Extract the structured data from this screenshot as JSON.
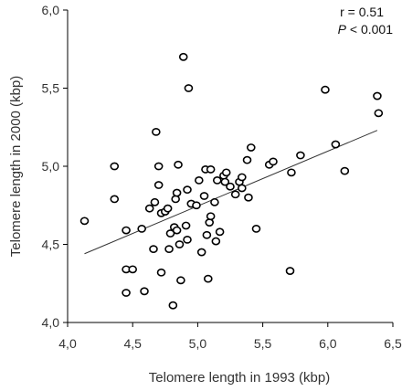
{
  "chart_data": {
    "type": "scatter",
    "xlabel": "Telomere length in 1993 (kbp)",
    "ylabel": "Telomere length in 2000 (kbp)",
    "xlim": [
      4.0,
      6.5
    ],
    "ylim": [
      4.0,
      6.0
    ],
    "xticks": [
      "4,0",
      "4,5",
      "5,0",
      "5,5",
      "6,0",
      "6,5"
    ],
    "yticks": [
      "4,0",
      "4,5",
      "5,0",
      "5,5",
      "6,0"
    ],
    "xtick_values": [
      4.0,
      4.5,
      5.0,
      5.5,
      6.0,
      6.5
    ],
    "ytick_values": [
      4.0,
      4.5,
      5.0,
      5.5,
      6.0
    ],
    "annotations": {
      "r_text": "r = 0.51",
      "p_symbol": "P",
      "p_text": " < 0.001"
    },
    "trendline": {
      "x": [
        4.13,
        6.38
      ],
      "y": [
        4.44,
        5.23
      ]
    },
    "points": [
      [
        4.13,
        4.65
      ],
      [
        4.36,
        5.0
      ],
      [
        4.36,
        4.79
      ],
      [
        4.45,
        4.59
      ],
      [
        4.45,
        4.34
      ],
      [
        4.45,
        4.19
      ],
      [
        4.5,
        4.34
      ],
      [
        4.57,
        4.6
      ],
      [
        4.59,
        4.2
      ],
      [
        4.63,
        4.73
      ],
      [
        4.66,
        4.47
      ],
      [
        4.67,
        4.77
      ],
      [
        4.68,
        5.22
      ],
      [
        4.7,
        5.0
      ],
      [
        4.7,
        4.88
      ],
      [
        4.72,
        4.7
      ],
      [
        4.72,
        4.32
      ],
      [
        4.75,
        4.71
      ],
      [
        4.77,
        4.73
      ],
      [
        4.78,
        4.47
      ],
      [
        4.79,
        4.57
      ],
      [
        4.81,
        4.11
      ],
      [
        4.82,
        4.61
      ],
      [
        4.83,
        4.79
      ],
      [
        4.84,
        4.83
      ],
      [
        4.84,
        4.59
      ],
      [
        4.85,
        5.01
      ],
      [
        4.86,
        4.5
      ],
      [
        4.87,
        4.27
      ],
      [
        4.89,
        5.7
      ],
      [
        4.91,
        4.62
      ],
      [
        4.92,
        4.85
      ],
      [
        4.92,
        4.53
      ],
      [
        4.93,
        5.5
      ],
      [
        4.95,
        4.76
      ],
      [
        4.99,
        4.75
      ],
      [
        5.01,
        4.91
      ],
      [
        5.03,
        4.45
      ],
      [
        5.05,
        4.81
      ],
      [
        5.06,
        4.98
      ],
      [
        5.07,
        4.56
      ],
      [
        5.08,
        4.28
      ],
      [
        5.09,
        4.64
      ],
      [
        5.1,
        4.98
      ],
      [
        5.1,
        4.68
      ],
      [
        5.13,
        4.77
      ],
      [
        5.14,
        4.52
      ],
      [
        5.15,
        4.91
      ],
      [
        5.17,
        4.58
      ],
      [
        5.2,
        4.94
      ],
      [
        5.21,
        4.9
      ],
      [
        5.22,
        4.96
      ],
      [
        5.25,
        4.87
      ],
      [
        5.29,
        4.82
      ],
      [
        5.32,
        4.9
      ],
      [
        5.34,
        4.93
      ],
      [
        5.34,
        4.86
      ],
      [
        5.38,
        5.04
      ],
      [
        5.39,
        4.8
      ],
      [
        5.41,
        5.12
      ],
      [
        5.45,
        4.6
      ],
      [
        5.55,
        5.01
      ],
      [
        5.58,
        5.03
      ],
      [
        5.71,
        4.33
      ],
      [
        5.72,
        4.96
      ],
      [
        5.79,
        5.07
      ],
      [
        5.98,
        5.49
      ],
      [
        6.06,
        5.14
      ],
      [
        6.13,
        4.97
      ],
      [
        6.38,
        5.45
      ],
      [
        6.39,
        5.34
      ]
    ]
  }
}
